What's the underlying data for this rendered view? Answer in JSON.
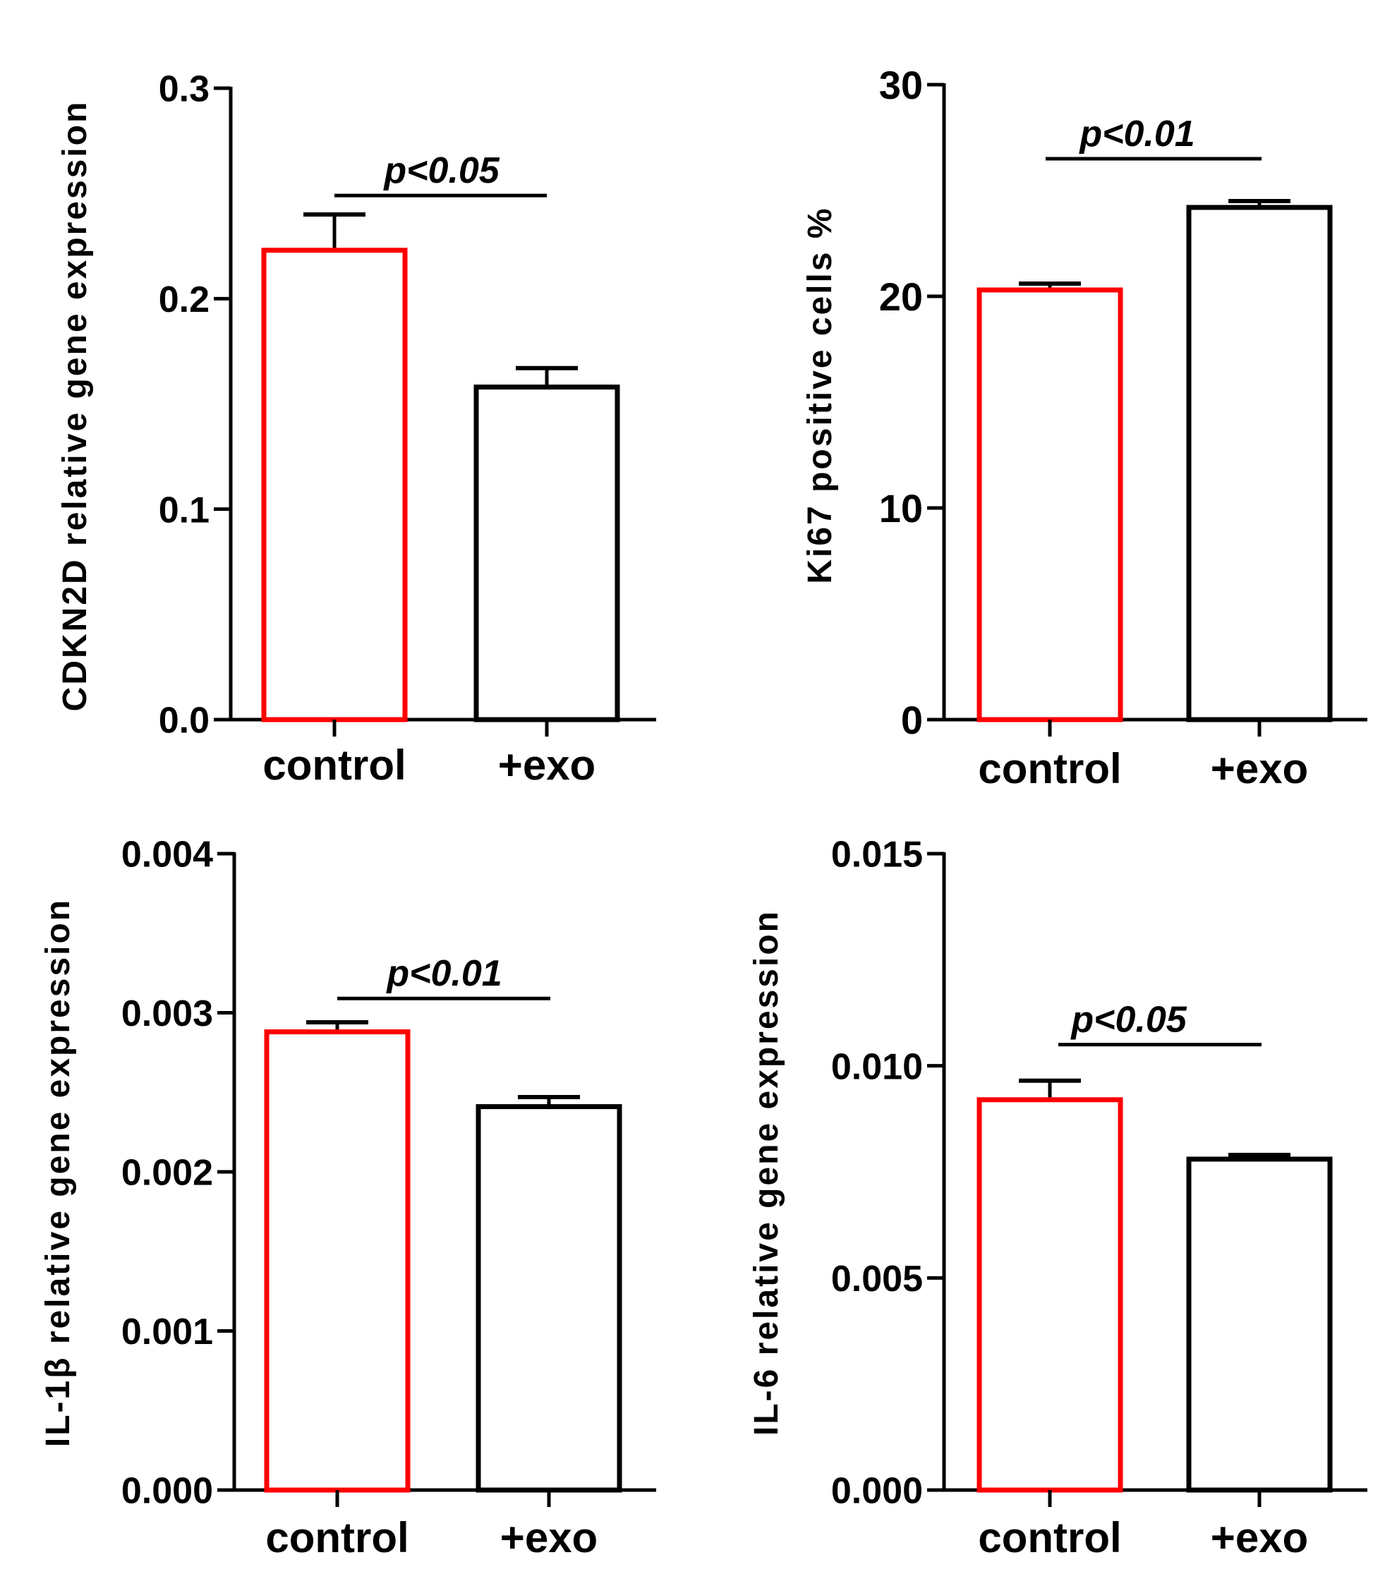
{
  "colors": {
    "control": "#ff0000",
    "exo": "#000000",
    "axis": "#000000"
  },
  "chart_data": [
    {
      "type": "bar",
      "ylabel": "CDKN2D relative gene expression",
      "categories": [
        "control",
        "+exo"
      ],
      "values": [
        0.223,
        0.158
      ],
      "errors": [
        0.017,
        0.009
      ],
      "ylim": [
        0,
        0.3
      ],
      "yticks": [
        0.0,
        0.1,
        0.2,
        0.3
      ],
      "ytick_labels": [
        "0.0",
        "0.1",
        "0.2",
        "0.3"
      ],
      "significance": {
        "label": "p<0.05",
        "y": 0.249
      }
    },
    {
      "type": "bar",
      "ylabel": "Ki67 positive cells %",
      "categories": [
        "control",
        "+exo"
      ],
      "values": [
        20.3,
        24.2
      ],
      "errors": [
        0.3,
        0.3
      ],
      "ylim": [
        0,
        30
      ],
      "yticks": [
        0,
        10,
        20,
        30
      ],
      "ytick_labels": [
        "0",
        "10",
        "20",
        "30"
      ],
      "significance": {
        "label": "p<0.01",
        "y": 26.5
      }
    },
    {
      "type": "bar",
      "ylabel": "IL-1β relative gene expression",
      "categories": [
        "control",
        "+exo"
      ],
      "values": [
        0.00288,
        0.00241
      ],
      "errors": [
        6e-05,
        6e-05
      ],
      "ylim": [
        0,
        0.004
      ],
      "yticks": [
        0.0,
        0.001,
        0.002,
        0.003,
        0.004
      ],
      "ytick_labels": [
        "0.000",
        "0.001",
        "0.002",
        "0.003",
        "0.004"
      ],
      "significance": {
        "label": "p<0.01",
        "y": 0.00309
      }
    },
    {
      "type": "bar",
      "ylabel": "IL-6 relative gene expression",
      "categories": [
        "control",
        "+exo"
      ],
      "values": [
        0.0092,
        0.0078
      ],
      "errors": [
        0.00045,
        0.0001
      ],
      "ylim": [
        0,
        0.015
      ],
      "yticks": [
        0.0,
        0.005,
        0.01,
        0.015
      ],
      "ytick_labels": [
        "0.000",
        "0.005",
        "0.010",
        "0.015"
      ],
      "significance": {
        "label": "p<0.05",
        "y": 0.0105
      }
    }
  ]
}
